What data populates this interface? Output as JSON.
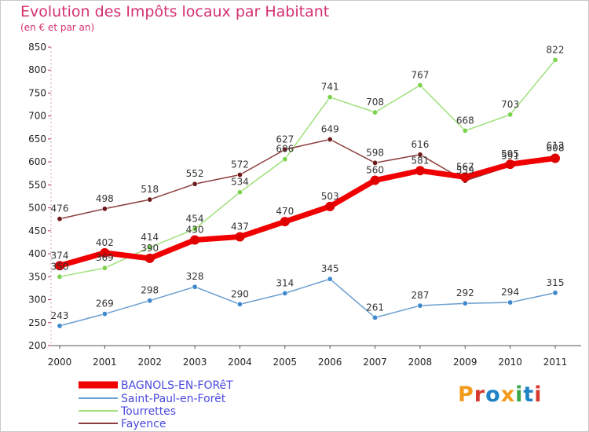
{
  "header": {
    "title": "Evolution des Impôts locaux par Habitant",
    "subtitle": "(en € et par an)"
  },
  "brand": {
    "text": "Proxiti",
    "colors": [
      "#f29b1d",
      "#d63a2f",
      "#1f83c6",
      "#f29b1d",
      "#3aa64a",
      "#1f83c6",
      "#d63a2f"
    ]
  },
  "chart_data": {
    "type": "line",
    "title": "Evolution des Impôts locaux par Habitant",
    "subtitle": "(en € et par an)",
    "xlabel": "",
    "ylabel": "",
    "ylim": [
      200,
      850
    ],
    "ytick_step": 50,
    "grid": false,
    "legend_placement": "bottom-left",
    "x": [
      "2000",
      "2001",
      "2002",
      "2003",
      "2004",
      "2005",
      "2006",
      "2007",
      "2008",
      "2009",
      "2010",
      "2011"
    ],
    "series": [
      {
        "name": "BAGNOLS-EN-FORêT",
        "color": "#f00000",
        "dot": "#e00000",
        "width": 7,
        "values": [
          374,
          402,
          390,
          430,
          437,
          470,
          503,
          560,
          581,
          567,
          595,
          608
        ]
      },
      {
        "name": "Saint-Paul-en-Forêt",
        "color": "#6a9ed0",
        "dot": "#3e88cc",
        "width": 1.5,
        "values": [
          243,
          269,
          298,
          328,
          290,
          314,
          345,
          261,
          287,
          292,
          294,
          315
        ]
      },
      {
        "name": "Tourrettes",
        "color": "#9fe07a",
        "dot": "#7bd24c",
        "width": 1.5,
        "values": [
          350,
          369,
          414,
          454,
          534,
          606,
          741,
          708,
          767,
          668,
          703,
          822
        ]
      },
      {
        "name": "Fayence",
        "color": "#8c3c3c",
        "dot": "#6e1a1a",
        "width": 1.5,
        "values": [
          476,
          498,
          518,
          552,
          572,
          627,
          649,
          598,
          616,
          559,
          591,
          613
        ]
      }
    ]
  }
}
